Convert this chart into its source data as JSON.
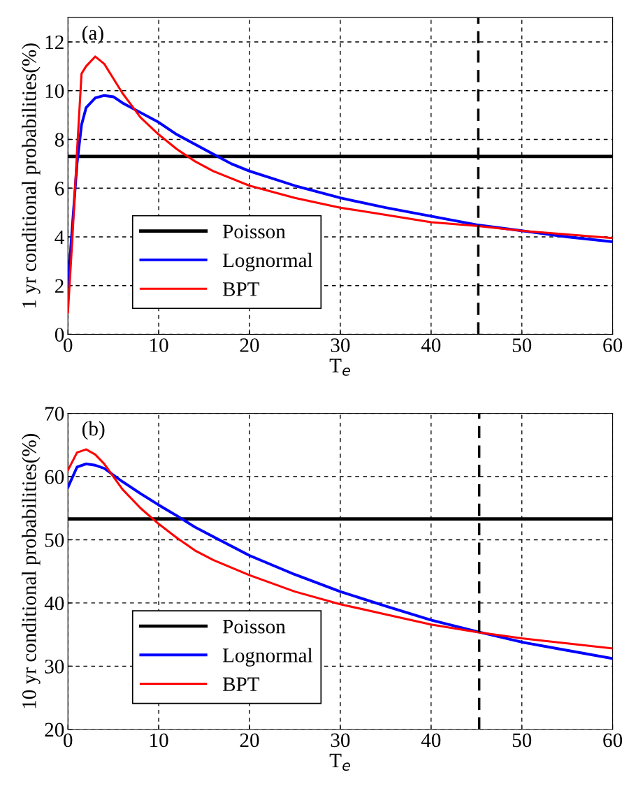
{
  "chart_data": [
    {
      "type": "line",
      "xlabel": "T$_{e}$",
      "ylabel": "1 yr conditional probabilities(%)",
      "annotations": [
        "(a)"
      ],
      "xlim": [
        0,
        60
      ],
      "xticks": [
        0,
        10,
        20,
        30,
        40,
        50,
        60
      ],
      "ylim": [
        0,
        13
      ],
      "yticks": [
        0,
        2,
        4,
        6,
        8,
        10,
        12
      ],
      "grid": true,
      "legend": "bottom left",
      "line_style": "solid",
      "ref_lines": [
        {
          "axis": "x",
          "value": 45.2,
          "color": "#000000",
          "line_style": "dashed"
        }
      ],
      "series": [
        {
          "name": "Poisson",
          "color": "#000000",
          "x": [
            0,
            60
          ],
          "values": [
            7.3,
            7.3
          ]
        },
        {
          "name": "Lognormal",
          "color": "#0000ff",
          "x": [
            0,
            0.5,
            1,
            1.5,
            2,
            3,
            4,
            5,
            6,
            8,
            10,
            12,
            14,
            16,
            18,
            20,
            25,
            30,
            35,
            40,
            45,
            50,
            55,
            60
          ],
          "values": [
            2,
            4.5,
            7,
            8.6,
            9.3,
            9.7,
            9.8,
            9.75,
            9.5,
            9.1,
            8.7,
            8.2,
            7.8,
            7.4,
            7.0,
            6.7,
            6.1,
            5.6,
            5.2,
            4.85,
            4.5,
            4.25,
            4.0,
            3.8
          ]
        },
        {
          "name": "BPT",
          "color": "#ff0000",
          "x": [
            0,
            0.5,
            1,
            1.5,
            2,
            3,
            4,
            5,
            6,
            7,
            8,
            10,
            12,
            14,
            16,
            20,
            25,
            30,
            35,
            40,
            45,
            50,
            55,
            60
          ],
          "values": [
            0.9,
            4,
            7.5,
            10.7,
            11.0,
            11.4,
            11.1,
            10.5,
            9.9,
            9.4,
            8.9,
            8.2,
            7.6,
            7.1,
            6.7,
            6.1,
            5.6,
            5.2,
            4.9,
            4.6,
            4.45,
            4.25,
            4.1,
            3.95
          ]
        }
      ]
    },
    {
      "type": "line",
      "xlabel": "T$_{e}$",
      "ylabel": "10 yr conditional probabilities(%)",
      "annotations": [
        "(b)"
      ],
      "xlim": [
        0,
        60
      ],
      "xticks": [
        0,
        10,
        20,
        30,
        40,
        50,
        60
      ],
      "ylim": [
        20,
        70
      ],
      "yticks": [
        20,
        30,
        40,
        50,
        60,
        70
      ],
      "grid": true,
      "legend": "bottom left",
      "line_style": "solid",
      "ref_lines": [
        {
          "axis": "x",
          "value": 45.3,
          "color": "#000000",
          "line_style": "dashed"
        }
      ],
      "series": [
        {
          "name": "Poisson",
          "color": "#000000",
          "x": [
            0,
            60
          ],
          "values": [
            53.3,
            53.3
          ]
        },
        {
          "name": "Lognormal",
          "color": "#0000ff",
          "x": [
            0,
            1,
            2,
            3,
            4,
            6,
            8,
            10,
            12,
            14,
            16,
            20,
            25,
            30,
            35,
            40,
            45,
            50,
            55,
            60
          ],
          "values": [
            58.3,
            61.5,
            62,
            61.8,
            61.3,
            59.2,
            57.3,
            55.5,
            53.8,
            52,
            50.5,
            47.5,
            44.5,
            41.8,
            39.5,
            37.3,
            35.5,
            33.8,
            32.5,
            31.2
          ]
        },
        {
          "name": "BPT",
          "color": "#ff0000",
          "x": [
            0,
            1,
            2,
            3,
            4,
            6,
            8,
            10,
            12,
            14,
            16,
            20,
            25,
            30,
            35,
            40,
            45,
            50,
            55,
            60
          ],
          "values": [
            61,
            63.8,
            64.3,
            63.5,
            62,
            58,
            55,
            52.5,
            50.3,
            48.3,
            46.8,
            44.4,
            41.8,
            39.8,
            38.2,
            36.6,
            35.4,
            34.4,
            33.6,
            32.8
          ]
        }
      ]
    }
  ]
}
